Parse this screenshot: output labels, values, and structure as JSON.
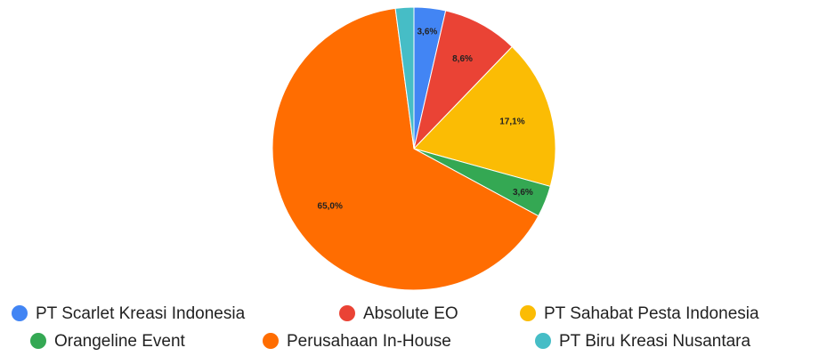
{
  "chart_data": {
    "type": "pie",
    "categories": [
      "PT Scarlet Kreasi Indonesia",
      "Absolute EO",
      "PT Sahabat Pesta Indonesia",
      "Orangeline Event",
      "Perusahaan In-House",
      "PT Biru Kreasi Nusantara"
    ],
    "values": [
      3.6,
      8.6,
      17.1,
      3.6,
      65.0,
      2.1
    ],
    "value_labels": [
      "3,6%",
      "8,6%",
      "17,1%",
      "3,6%",
      "65,0%",
      null
    ],
    "colors": [
      "#4285f4",
      "#ea4335",
      "#fbbc04",
      "#34a853",
      "#ff6d01",
      "#46bdc6"
    ],
    "legend": "bottom"
  }
}
